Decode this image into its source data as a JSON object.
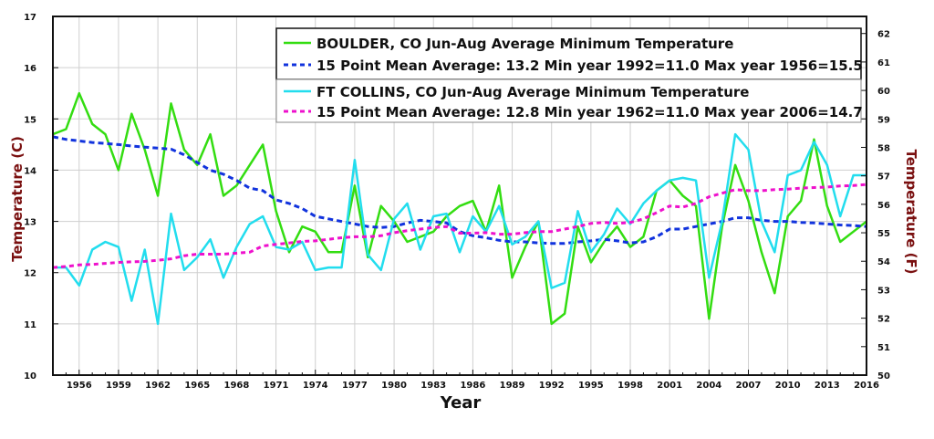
{
  "chart_data": {
    "type": "line",
    "xlabel": "Year",
    "ylabel_left": "Temperature (C)",
    "ylabel_right": "Temperature (F)",
    "ylim_left": [
      10,
      17
    ],
    "ylim_right": [
      50,
      62.6
    ],
    "xlim": [
      1954,
      2016
    ],
    "grid": true,
    "x_ticks": [
      1956,
      1959,
      1962,
      1965,
      1968,
      1971,
      1974,
      1977,
      1980,
      1983,
      1986,
      1989,
      1992,
      1995,
      1998,
      2001,
      2004,
      2007,
      2010,
      2013,
      2016
    ],
    "y_ticks_left": [
      10,
      11,
      12,
      13,
      14,
      15,
      16,
      17
    ],
    "y_ticks_right": [
      50,
      51,
      52,
      53,
      54,
      55,
      56,
      57,
      58,
      59,
      60,
      61,
      62
    ],
    "x": [
      1954,
      1955,
      1956,
      1957,
      1958,
      1959,
      1960,
      1961,
      1962,
      1963,
      1964,
      1965,
      1966,
      1967,
      1968,
      1969,
      1970,
      1971,
      1972,
      1973,
      1974,
      1975,
      1976,
      1977,
      1978,
      1979,
      1980,
      1981,
      1982,
      1983,
      1984,
      1985,
      1986,
      1987,
      1988,
      1989,
      1990,
      1991,
      1992,
      1993,
      1994,
      1995,
      1996,
      1997,
      1998,
      1999,
      2000,
      2001,
      2002,
      2003,
      2004,
      2005,
      2006,
      2007,
      2008,
      2009,
      2010,
      2011,
      2012,
      2013,
      2014,
      2015,
      2016
    ],
    "legend": [
      {
        "label": "BOULDER, CO  Jun-Aug  Average Minimum Temperature",
        "color": "#33dd11",
        "style": "solid"
      },
      {
        "label": "15 Point Mean  Average: 13.2  Min year 1992=11.0  Max year 1956=15.5",
        "color": "#1133dd",
        "style": "dashed"
      },
      {
        "label": "FT COLLINS, CO  Jun-Aug  Average Minimum Temperature",
        "color": "#22ddee",
        "style": "solid"
      },
      {
        "label": "15 Point Mean  Average: 12.8  Min year 1962=11.0  Max year 2006=14.7",
        "color": "#ee11cc",
        "style": "dashed"
      }
    ],
    "series": [
      {
        "name": "BOULDER, CO  Jun-Aug  Average Minimum Temperature",
        "color": "#33dd11",
        "width": 2.5,
        "dash": "",
        "values": [
          14.7,
          14.8,
          15.5,
          14.9,
          14.7,
          14.0,
          15.1,
          14.4,
          13.5,
          15.3,
          14.4,
          14.1,
          14.7,
          13.5,
          13.7,
          14.1,
          14.5,
          13.2,
          12.4,
          12.9,
          12.8,
          12.4,
          12.4,
          13.7,
          12.3,
          13.3,
          13.0,
          12.6,
          12.7,
          12.8,
          13.1,
          13.3,
          13.4,
          12.8,
          13.7,
          11.9,
          12.5,
          13.0,
          11.0,
          11.2,
          12.9,
          12.2,
          12.6,
          12.9,
          12.5,
          12.7,
          13.6,
          13.8,
          13.5,
          13.3,
          11.1,
          12.9,
          14.1,
          13.4,
          12.4,
          11.6,
          13.1,
          13.4,
          14.6,
          13.3,
          12.6,
          12.8,
          13.0
        ]
      },
      {
        "name": "15 Point Mean  Average: 13.2  Min year 1992=11.0  Max year 1956=15.5",
        "color": "#1133dd",
        "width": 3,
        "dash": "6,4",
        "values": [
          14.65,
          14.6,
          14.57,
          14.54,
          14.52,
          14.5,
          14.47,
          14.45,
          14.43,
          14.41,
          14.3,
          14.15,
          14.0,
          13.92,
          13.8,
          13.65,
          13.6,
          13.42,
          13.35,
          13.25,
          13.1,
          13.05,
          13.0,
          12.95,
          12.9,
          12.88,
          12.9,
          12.97,
          13.02,
          13.0,
          12.97,
          12.8,
          12.72,
          12.68,
          12.63,
          12.6,
          12.6,
          12.58,
          12.57,
          12.57,
          12.6,
          12.62,
          12.65,
          12.62,
          12.58,
          12.6,
          12.7,
          12.85,
          12.85,
          12.9,
          12.95,
          13.0,
          13.07,
          13.07,
          13.02,
          13.0,
          13.0,
          12.98,
          12.97,
          12.95,
          12.93,
          12.92,
          12.9
        ]
      },
      {
        "name": "FT COLLINS, CO  Jun-Aug  Average Minimum Temperature",
        "color": "#22ddee",
        "width": 2.5,
        "dash": "",
        "values": [
          12.1,
          12.1,
          11.75,
          12.45,
          12.6,
          12.5,
          11.45,
          12.45,
          11.0,
          13.15,
          12.05,
          12.3,
          12.65,
          11.9,
          12.5,
          12.95,
          13.1,
          12.5,
          12.45,
          12.6,
          12.05,
          12.1,
          12.1,
          14.2,
          12.35,
          12.05,
          13.05,
          13.35,
          12.45,
          13.1,
          13.15,
          12.4,
          13.1,
          12.8,
          13.3,
          12.55,
          12.7,
          13.0,
          11.7,
          11.8,
          13.2,
          12.4,
          12.75,
          13.25,
          12.95,
          13.35,
          13.6,
          13.8,
          13.85,
          13.8,
          11.9,
          13.0,
          14.7,
          14.4,
          13.0,
          12.4,
          13.9,
          14.0,
          14.55,
          14.1,
          13.1,
          13.9,
          13.9
        ]
      },
      {
        "name": "15 Point Mean  Average: 12.8  Min year 1962=11.0  Max year 2006=14.7",
        "color": "#ee11cc",
        "width": 3,
        "dash": "5,4",
        "values": [
          12.1,
          12.12,
          12.15,
          12.16,
          12.18,
          12.2,
          12.21,
          12.22,
          12.24,
          12.27,
          12.33,
          12.36,
          12.36,
          12.36,
          12.38,
          12.4,
          12.52,
          12.55,
          12.58,
          12.61,
          12.62,
          12.65,
          12.68,
          12.7,
          12.7,
          12.72,
          12.78,
          12.82,
          12.85,
          12.88,
          12.9,
          12.77,
          12.77,
          12.78,
          12.75,
          12.75,
          12.78,
          12.8,
          12.8,
          12.85,
          12.9,
          12.96,
          12.98,
          12.96,
          12.98,
          13.05,
          13.17,
          13.3,
          13.28,
          13.35,
          13.48,
          13.55,
          13.62,
          13.6,
          13.6,
          13.62,
          13.63,
          13.65,
          13.66,
          13.67,
          13.69,
          13.7,
          13.72
        ]
      }
    ]
  }
}
